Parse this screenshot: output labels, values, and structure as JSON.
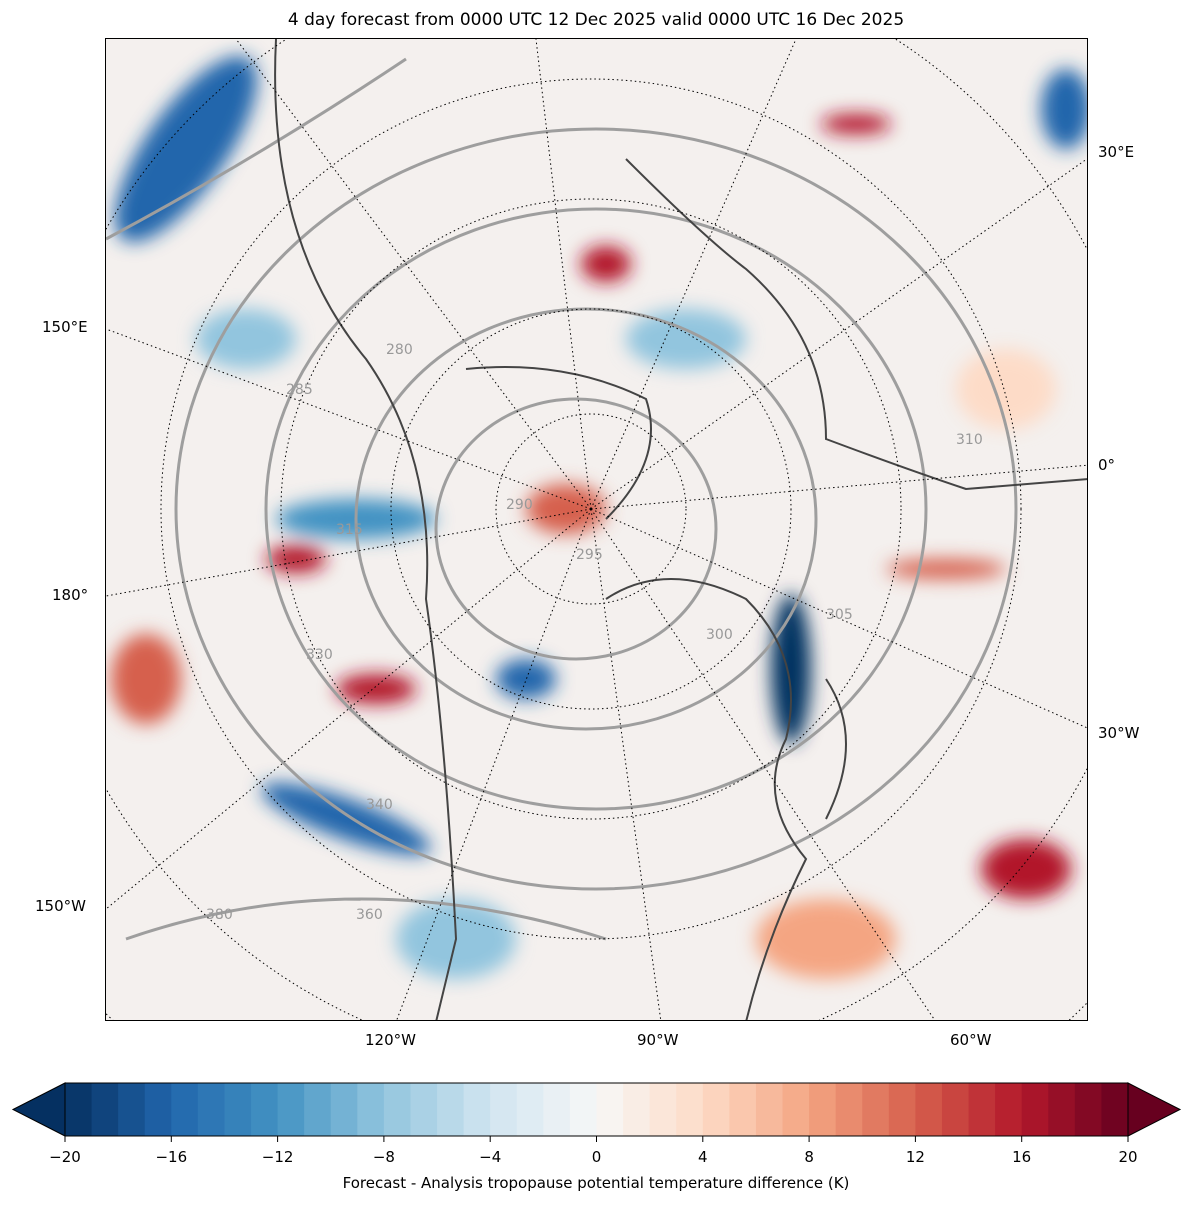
{
  "title": "4 day forecast from 0000 UTC 12 Dec 2025 valid 0000 UTC 16 Dec 2025",
  "lon_labels": {
    "right": [
      "30°E",
      "0°",
      "30°W"
    ],
    "left": [
      "150°E",
      "180°",
      "150°W"
    ],
    "bottom": [
      "120°W",
      "90°W",
      "60°W"
    ]
  },
  "contour_labels": [
    "280",
    "285",
    "290",
    "295",
    "300",
    "305",
    "310",
    "315",
    "330",
    "340",
    "360",
    "380"
  ],
  "colorbar": {
    "min": -20,
    "max": 20,
    "step": 1,
    "ticks": [
      "−20",
      "−16",
      "−12",
      "−8",
      "−4",
      "0",
      "4",
      "8",
      "12",
      "16",
      "20"
    ],
    "label": "Forecast - Analysis tropopause potential temperature difference (K)",
    "extend": "both",
    "colormap_anchors": [
      "#053061",
      "#2166ac",
      "#4393c3",
      "#92c5de",
      "#d1e5f0",
      "#f7f7f7",
      "#fddbc7",
      "#f4a582",
      "#d6604d",
      "#b2182b",
      "#67001f"
    ]
  }
}
